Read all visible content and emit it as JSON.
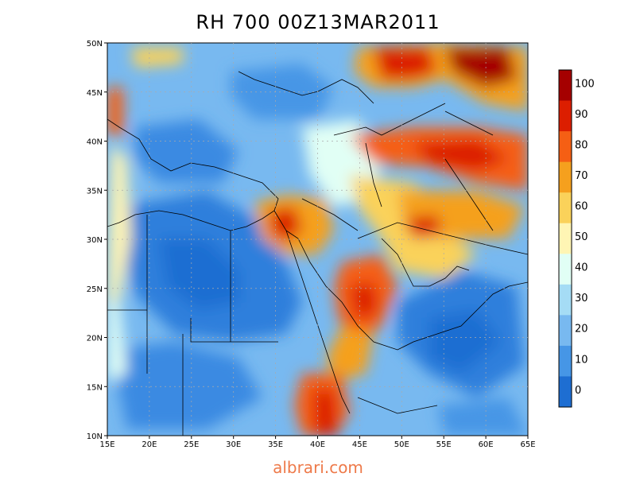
{
  "title": "RH 700 00Z13MAR2011",
  "watermark": "albrari.com",
  "map": {
    "lon_labels": [
      "15E",
      "20E",
      "25E",
      "30E",
      "35E",
      "40E",
      "45E",
      "50E",
      "55E",
      "60E",
      "65E"
    ],
    "lat_labels": [
      "50N",
      "45N",
      "40N",
      "35N",
      "30N",
      "25N",
      "20N",
      "15N",
      "10N"
    ],
    "lon_range": [
      15,
      65
    ],
    "lat_range": [
      10,
      50
    ],
    "grid": "dotted"
  },
  "colorbar": {
    "labels": [
      "100",
      "90",
      "80",
      "70",
      "60",
      "50",
      "40",
      "30",
      "20",
      "10",
      "0"
    ],
    "colors": [
      "#a50000",
      "#dc1e00",
      "#f55f14",
      "#f5a01e",
      "#fad25a",
      "#fff5b4",
      "#e1fff5",
      "#a5dcf5",
      "#78b9f0",
      "#4696e6",
      "#1e6ed2"
    ]
  }
}
